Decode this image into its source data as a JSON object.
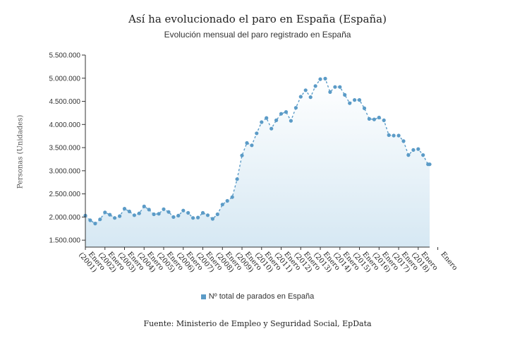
{
  "title": "Así ha evolucionado el paro en España (España)",
  "subtitle": "Evolución mensual del paro registrado en España",
  "source": "Fuente: Ministerio de Empleo y Seguridad Social, EpData",
  "colors": {
    "line": "#5b9bc7",
    "marker": "#5b9bc7",
    "fill": "#d6e8f3",
    "axis": "#333333"
  },
  "chart_data": {
    "type": "area",
    "ylabel": "Personas (Unidades)",
    "ylim": [
      1350000,
      5500000
    ],
    "yticks": [
      1500000,
      2000000,
      2500000,
      3000000,
      3500000,
      4000000,
      4500000,
      5000000,
      5500000
    ],
    "ytick_labels": [
      "1.500.000",
      "2.000.000",
      "2.500.000",
      "3.000.000",
      "3.500.000",
      "4.000.000",
      "4.500.000",
      "5.000.000",
      "5.500.000"
    ],
    "xrange": [
      "2001-01",
      "2018-08"
    ],
    "xtick_labels": [
      "Enero (2001)",
      "Enero (2002)",
      "Enero (2003)",
      "Enero (2004)",
      "Enero (2005)",
      "Enero (2006)",
      "Enero (2007)",
      "Enero (2008)",
      "Enero (2009)",
      "Enero (2010)",
      "Enero (2011)",
      "Enero (2012)",
      "Enero (2013)",
      "Enero (2014)",
      "Enero (2015)",
      "Enero (2016)",
      "Enero (2017)",
      "Enero (2018)",
      "Enero"
    ],
    "grid": false,
    "legend_position": "bottom",
    "series": [
      {
        "name": "Nº total de parados en España",
        "x": [
          "2001-01",
          "2001-04",
          "2001-07",
          "2001-10",
          "2002-01",
          "2002-04",
          "2002-07",
          "2002-10",
          "2003-01",
          "2003-04",
          "2003-07",
          "2003-10",
          "2004-01",
          "2004-04",
          "2004-07",
          "2004-10",
          "2005-01",
          "2005-04",
          "2005-07",
          "2005-10",
          "2006-01",
          "2006-04",
          "2006-07",
          "2006-10",
          "2007-01",
          "2007-04",
          "2007-07",
          "2007-10",
          "2008-01",
          "2008-04",
          "2008-07",
          "2008-10",
          "2009-01",
          "2009-04",
          "2009-07",
          "2009-10",
          "2010-01",
          "2010-04",
          "2010-07",
          "2010-10",
          "2011-01",
          "2011-04",
          "2011-07",
          "2011-10",
          "2012-01",
          "2012-04",
          "2012-07",
          "2012-10",
          "2013-01",
          "2013-04",
          "2013-07",
          "2013-10",
          "2014-01",
          "2014-04",
          "2014-07",
          "2014-10",
          "2015-01",
          "2015-04",
          "2015-07",
          "2015-10",
          "2016-01",
          "2016-04",
          "2016-07",
          "2016-10",
          "2017-01",
          "2017-04",
          "2017-07",
          "2017-10",
          "2018-01",
          "2018-04",
          "2018-07",
          "2018-08"
        ],
        "values": [
          2030000,
          1930000,
          1860000,
          1950000,
          2100000,
          2050000,
          1980000,
          2020000,
          2180000,
          2120000,
          2040000,
          2080000,
          2230000,
          2160000,
          2060000,
          2070000,
          2170000,
          2110000,
          2000000,
          2030000,
          2140000,
          2090000,
          1980000,
          1990000,
          2090000,
          2040000,
          1960000,
          2060000,
          2270000,
          2350000,
          2430000,
          2820000,
          3330000,
          3600000,
          3550000,
          3810000,
          4050000,
          4140000,
          3910000,
          4090000,
          4230000,
          4270000,
          4080000,
          4360000,
          4600000,
          4740000,
          4590000,
          4830000,
          4980000,
          4990000,
          4700000,
          4810000,
          4810000,
          4640000,
          4460000,
          4530000,
          4530000,
          4350000,
          4120000,
          4110000,
          4150000,
          4090000,
          3770000,
          3760000,
          3760000,
          3640000,
          3340000,
          3450000,
          3470000,
          3340000,
          3140000,
          3140000
        ]
      }
    ]
  }
}
